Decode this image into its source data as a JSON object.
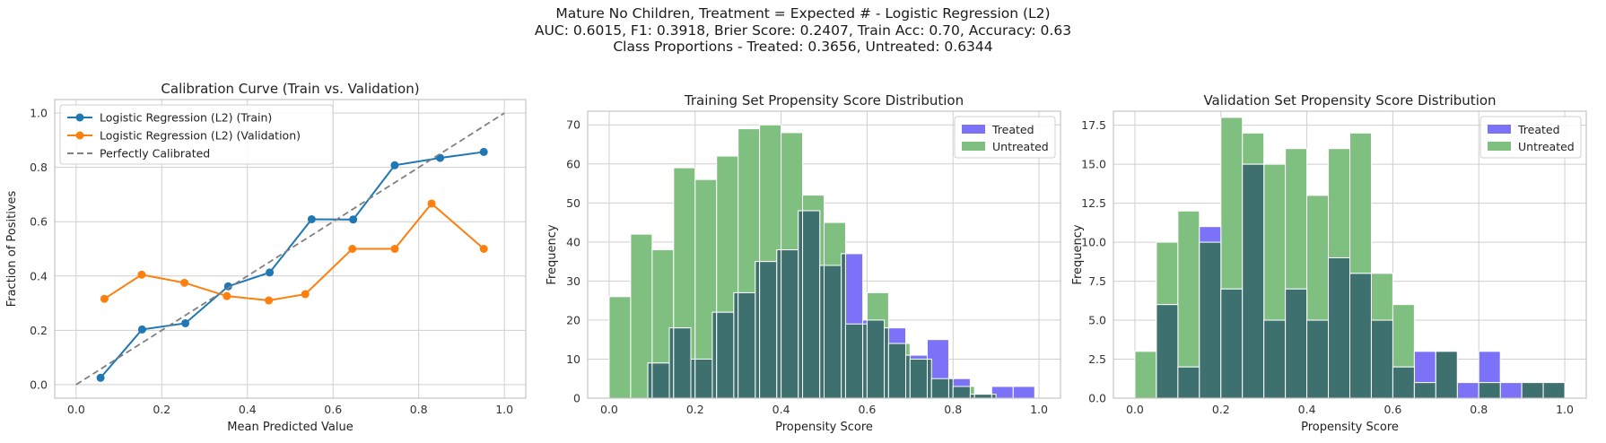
{
  "suptitle": [
    "Mature No Children, Treatment = Expected # - Logistic Regression (L2)",
    "AUC: 0.6015, F1: 0.3918, Brier Score: 0.2407, Train Acc: 0.70, Accuracy: 0.63",
    "Class Proportions - Treated: 0.3656, Untreated: 0.6344"
  ],
  "colors": {
    "train": "#1f77b4",
    "validation": "#ff7f0e",
    "diagonal": "#808080",
    "treated": "#7b72f7",
    "untreated": "#7fbf7f",
    "overlap": "#3f7070",
    "grid": "#cfcfcf",
    "axes_edge": "#c4c4c4"
  },
  "chart_data": [
    {
      "type": "line",
      "title": "Calibration Curve (Train vs. Validation)",
      "xlabel": "Mean Predicted Value",
      "ylabel": "Fraction of Positives",
      "xlim": [
        -0.05,
        1.05
      ],
      "ylim": [
        -0.05,
        1.05
      ],
      "xticks": [
        0.0,
        0.2,
        0.4,
        0.6,
        0.8,
        1.0
      ],
      "yticks": [
        0.0,
        0.2,
        0.4,
        0.6,
        0.8,
        1.0
      ],
      "tick_labels": [
        "0.0",
        "0.2",
        "0.4",
        "0.6",
        "0.8",
        "1.0"
      ],
      "legend": "top-left",
      "grid": true,
      "series": [
        {
          "name": "Logistic Regression (L2) (Train)",
          "color": "#1f77b4",
          "marker": "circle",
          "x": [
            0.057,
            0.154,
            0.255,
            0.355,
            0.452,
            0.55,
            0.647,
            0.744,
            0.85,
            0.952
          ],
          "y": [
            0.025,
            0.203,
            0.226,
            0.362,
            0.413,
            0.609,
            0.608,
            0.808,
            0.835,
            0.857
          ]
        },
        {
          "name": "Logistic Regression (L2) (Validation)",
          "color": "#ff7f0e",
          "marker": "circle",
          "x": [
            0.066,
            0.153,
            0.253,
            0.352,
            0.45,
            0.535,
            0.645,
            0.744,
            0.83,
            0.952
          ],
          "y": [
            0.316,
            0.405,
            0.375,
            0.326,
            0.31,
            0.333,
            0.5,
            0.5,
            0.667,
            0.5
          ]
        },
        {
          "name": "Perfectly Calibrated",
          "color": "#808080",
          "dashed": true,
          "x": [
            0.0,
            1.0
          ],
          "y": [
            0.0,
            1.0
          ]
        }
      ]
    },
    {
      "type": "bar",
      "title": "Training Set Propensity Score Distribution",
      "xlabel": "Propensity Score",
      "ylabel": "Frequency",
      "xlim": [
        -0.05,
        1.05
      ],
      "ylim": [
        0,
        73.5
      ],
      "xticks": [
        0.0,
        0.2,
        0.4,
        0.6,
        0.8,
        1.0
      ],
      "xtick_labels": [
        "0.0",
        "0.2",
        "0.4",
        "0.6",
        "0.8",
        "1.0"
      ],
      "yticks": [
        0,
        10,
        20,
        30,
        40,
        50,
        60,
        70
      ],
      "ytick_labels": [
        "0",
        "10",
        "20",
        "30",
        "40",
        "50",
        "60",
        "70"
      ],
      "legend": "top-right",
      "grid": true,
      "series": [
        {
          "name": "Treated",
          "color": "#7b72f7",
          "bins": [
            [
              0.09,
              0.14
            ],
            [
              0.14,
              0.19
            ],
            [
              0.19,
              0.24
            ],
            [
              0.24,
              0.29
            ],
            [
              0.29,
              0.34
            ],
            [
              0.34,
              0.39
            ],
            [
              0.39,
              0.44
            ],
            [
              0.44,
              0.49
            ],
            [
              0.49,
              0.54
            ],
            [
              0.54,
              0.59
            ],
            [
              0.59,
              0.64
            ],
            [
              0.64,
              0.69
            ],
            [
              0.69,
              0.74
            ],
            [
              0.74,
              0.79
            ],
            [
              0.79,
              0.84
            ],
            [
              0.84,
              0.89
            ],
            [
              0.89,
              0.94
            ],
            [
              0.94,
              0.99
            ]
          ],
          "values": [
            9,
            18,
            10,
            22,
            27,
            35,
            38,
            48,
            34,
            37,
            20,
            18,
            11,
            15,
            5,
            1,
            3,
            3
          ]
        },
        {
          "name": "Untreated",
          "color": "#7fbf7f",
          "bins": [
            [
              0.0,
              0.05
            ],
            [
              0.05,
              0.1
            ],
            [
              0.1,
              0.15
            ],
            [
              0.15,
              0.2
            ],
            [
              0.2,
              0.25
            ],
            [
              0.25,
              0.3
            ],
            [
              0.3,
              0.35
            ],
            [
              0.35,
              0.4
            ],
            [
              0.4,
              0.45
            ],
            [
              0.45,
              0.5
            ],
            [
              0.5,
              0.55
            ],
            [
              0.55,
              0.6
            ],
            [
              0.6,
              0.65
            ],
            [
              0.65,
              0.7
            ],
            [
              0.7,
              0.75
            ],
            [
              0.75,
              0.8
            ],
            [
              0.8,
              0.85
            ],
            [
              0.85,
              0.9
            ]
          ],
          "values": [
            26,
            42,
            38,
            59,
            56,
            62,
            69,
            70,
            68,
            52,
            45,
            19,
            27,
            14,
            10,
            5,
            3,
            1
          ]
        }
      ]
    },
    {
      "type": "bar",
      "title": "Validation Set Propensity Score Distribution",
      "xlabel": "Propensity Score",
      "ylabel": "Frequency",
      "xlim": [
        -0.05,
        1.05
      ],
      "ylim": [
        0,
        18.4
      ],
      "xticks": [
        0.0,
        0.2,
        0.4,
        0.6,
        0.8,
        1.0
      ],
      "xtick_labels": [
        "0.0",
        "0.2",
        "0.4",
        "0.6",
        "0.8",
        "1.0"
      ],
      "yticks": [
        0,
        2.5,
        5,
        7.5,
        10,
        12.5,
        15,
        17.5
      ],
      "ytick_labels": [
        "0.0",
        "2.5",
        "5.0",
        "7.5",
        "10.0",
        "12.5",
        "15.0",
        "17.5"
      ],
      "legend": "top-right",
      "grid": true,
      "series": [
        {
          "name": "Treated",
          "color": "#7b72f7",
          "bins": [
            [
              0.05,
              0.1
            ],
            [
              0.1,
              0.15
            ],
            [
              0.15,
              0.2
            ],
            [
              0.2,
              0.25
            ],
            [
              0.25,
              0.3
            ],
            [
              0.3,
              0.35
            ],
            [
              0.35,
              0.4
            ],
            [
              0.4,
              0.45
            ],
            [
              0.45,
              0.5
            ],
            [
              0.5,
              0.55
            ],
            [
              0.55,
              0.6
            ],
            [
              0.6,
              0.65
            ],
            [
              0.65,
              0.7
            ],
            [
              0.7,
              0.75
            ],
            [
              0.75,
              0.8
            ],
            [
              0.8,
              0.85
            ],
            [
              0.85,
              0.9
            ],
            [
              0.9,
              0.95
            ],
            [
              0.95,
              1.0
            ]
          ],
          "values": [
            6,
            2,
            11,
            7,
            15,
            5,
            7,
            5,
            9,
            8,
            5,
            2,
            3,
            3,
            1,
            3,
            1,
            1,
            1
          ]
        },
        {
          "name": "Untreated",
          "color": "#7fbf7f",
          "bins": [
            [
              0.0,
              0.05
            ],
            [
              0.05,
              0.1
            ],
            [
              0.1,
              0.15
            ],
            [
              0.15,
              0.2
            ],
            [
              0.2,
              0.25
            ],
            [
              0.25,
              0.3
            ],
            [
              0.3,
              0.35
            ],
            [
              0.35,
              0.4
            ],
            [
              0.4,
              0.45
            ],
            [
              0.45,
              0.5
            ],
            [
              0.5,
              0.55
            ],
            [
              0.55,
              0.6
            ],
            [
              0.6,
              0.65
            ],
            [
              0.65,
              0.7
            ],
            [
              0.7,
              0.75
            ],
            [
              0.75,
              0.8
            ],
            [
              0.8,
              0.85
            ],
            [
              0.85,
              0.9
            ],
            [
              0.9,
              0.95
            ],
            [
              0.95,
              1.0
            ]
          ],
          "values": [
            3,
            10,
            12,
            10,
            18,
            17,
            15,
            16,
            13,
            16,
            17,
            8,
            6,
            1,
            3,
            0,
            1,
            0,
            1,
            1
          ]
        }
      ]
    }
  ]
}
